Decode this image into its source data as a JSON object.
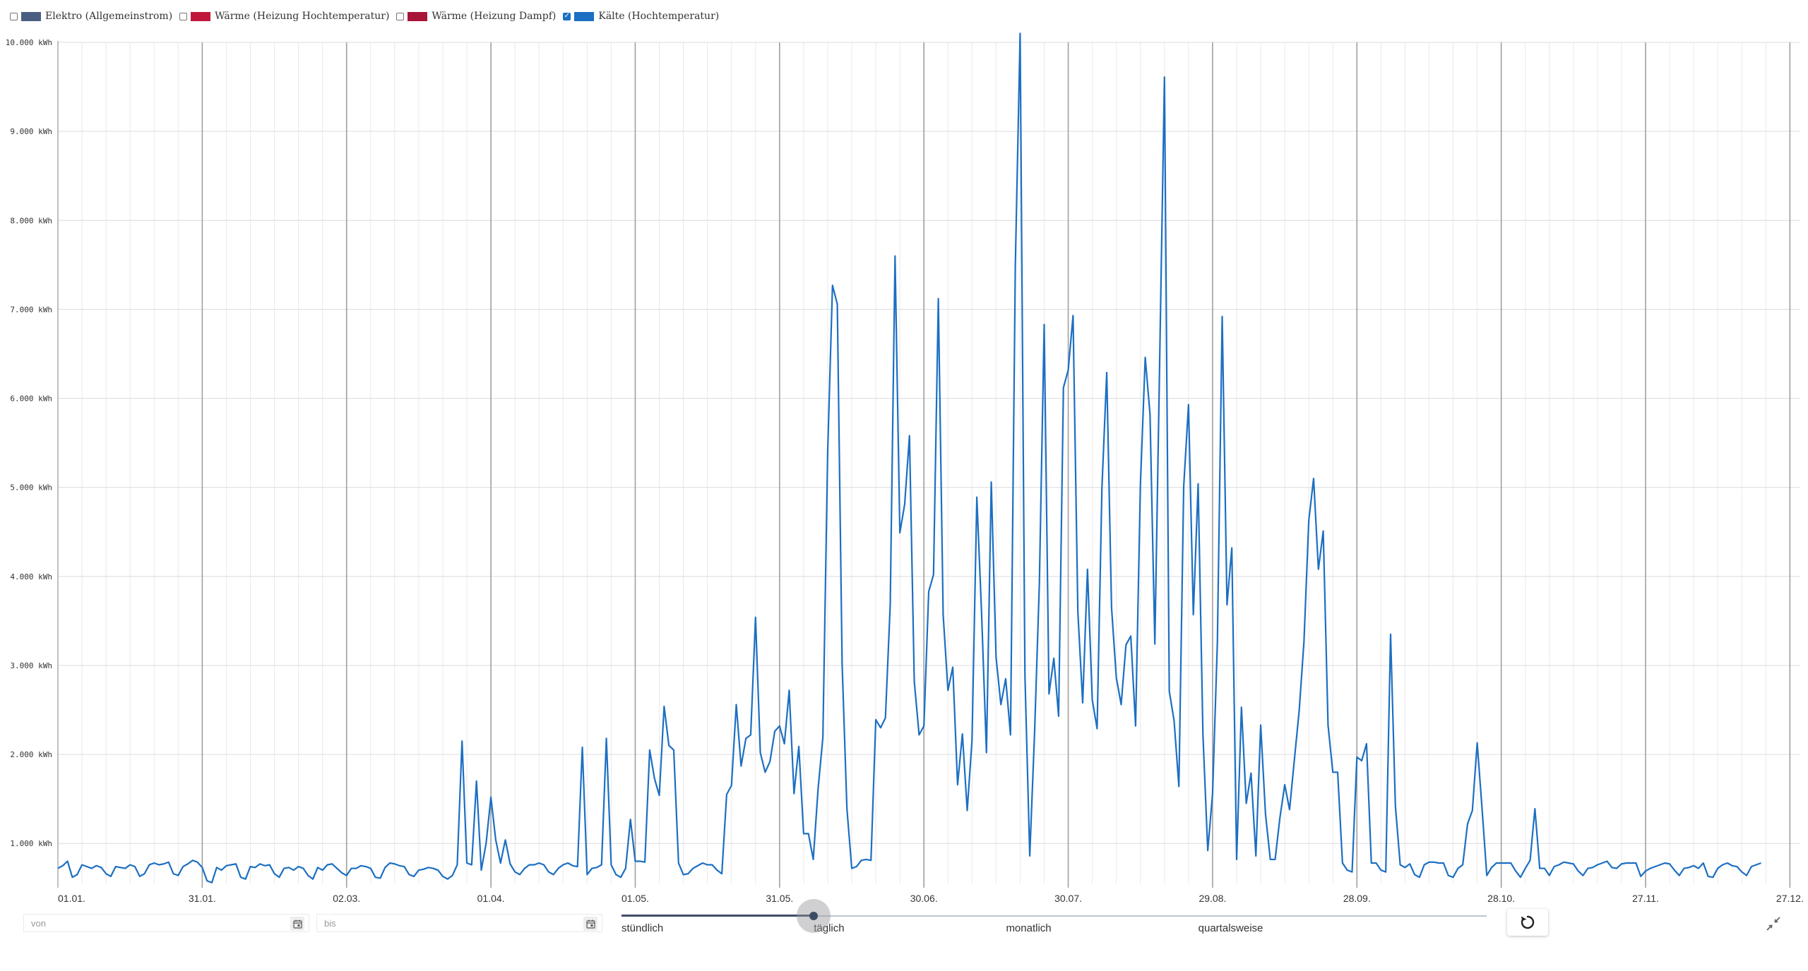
{
  "legend": [
    {
      "label": "Elektro (Allgemeinstrom)",
      "checked": false,
      "color": "#4a5e82"
    },
    {
      "label": "Wärme (Heizung Hochtemperatur)",
      "checked": false,
      "color": "#c0183c"
    },
    {
      "label": "Wärme (Heizung Dampf)",
      "checked": false,
      "color": "#a81538"
    },
    {
      "label": "Kälte (Hochtemperatur)",
      "checked": true,
      "color": "#1c6fc2"
    }
  ],
  "chart_data": {
    "type": "line",
    "title": "",
    "xlabel": "",
    "ylabel": "",
    "x_start": "01.01.",
    "x_tick_labels": [
      "01.01.",
      "31.01.",
      "02.03.",
      "01.04.",
      "01.05.",
      "31.05.",
      "30.06.",
      "30.07.",
      "29.08.",
      "28.09.",
      "28.10.",
      "27.11.",
      "27.12."
    ],
    "x_tick_days": [
      0,
      30,
      60,
      90,
      120,
      150,
      180,
      210,
      240,
      270,
      300,
      330,
      360
    ],
    "y_tick_labels": [
      "1.000 kWh",
      "2.000 kWh",
      "3.000 kWh",
      "4.000 kWh",
      "5.000 kWh",
      "6.000 kWh",
      "7.000 kWh",
      "8.000 kWh",
      "9.000 kWh",
      "10.000 kWh"
    ],
    "y_ticks": [
      1000,
      2000,
      3000,
      4000,
      5000,
      6000,
      7000,
      8000,
      9000,
      10000
    ],
    "ylim": [
      550,
      10000
    ],
    "xlim_days": [
      0,
      362
    ],
    "grid": true,
    "series": [
      {
        "name": "Kälte (Hochtemperatur)",
        "color": "#1c6fc2",
        "values": [
          720,
          750,
          800,
          620,
          650,
          760,
          740,
          720,
          750,
          730,
          660,
          630,
          740,
          730,
          720,
          760,
          740,
          630,
          660,
          760,
          780,
          760,
          770,
          790,
          660,
          640,
          740,
          770,
          810,
          790,
          730,
          580,
          560,
          730,
          700,
          750,
          760,
          770,
          620,
          600,
          740,
          730,
          770,
          750,
          760,
          660,
          620,
          720,
          730,
          700,
          740,
          720,
          640,
          600,
          730,
          700,
          760,
          770,
          720,
          670,
          640,
          720,
          720,
          750,
          740,
          720,
          620,
          610,
          730,
          780,
          770,
          750,
          740,
          650,
          630,
          700,
          710,
          730,
          720,
          700,
          630,
          600,
          640,
          760,
          2150,
          780,
          760,
          1700,
          700,
          1000,
          1520,
          1040,
          780,
          1040,
          770,
          680,
          650,
          720,
          760,
          760,
          780,
          760,
          680,
          650,
          720,
          760,
          780,
          750,
          740,
          2080,
          650,
          720,
          730,
          760,
          2180,
          760,
          650,
          620,
          720,
          1270,
          800,
          800,
          790,
          2050,
          1730,
          1540,
          2540,
          2100,
          2050,
          780,
          650,
          660,
          720,
          750,
          780,
          760,
          760,
          700,
          660,
          1550,
          1650,
          2560,
          1870,
          2180,
          2220,
          3540,
          2020,
          1800,
          1920,
          2260,
          2320,
          2120,
          2720,
          1560,
          2090,
          1110,
          1110,
          820,
          1610,
          2190,
          5400,
          7270,
          7060,
          3020,
          1390,
          720,
          740,
          810,
          820,
          810,
          2390,
          2300,
          2410,
          3680,
          7600,
          4490,
          4810,
          5580,
          2820,
          2220,
          2320,
          3830,
          4020,
          7120,
          3570,
          2720,
          2980,
          1660,
          2230,
          1370,
          2160,
          4890,
          3570,
          2020,
          5060,
          3090,
          2560,
          2850,
          2220,
          7490,
          10100,
          2890,
          860,
          2240,
          3920,
          6830,
          2680,
          3080,
          2430,
          6120,
          6320,
          6930,
          3600,
          2580,
          4080,
          2610,
          2290,
          4990,
          6290,
          3650,
          2860,
          2560,
          3230,
          3330,
          2320,
          5030,
          6460,
          5820,
          3240,
          6400,
          9610,
          2710,
          2380,
          1640,
          5010,
          5930,
          3570,
          5040,
          2220,
          920,
          1560,
          3260,
          6920,
          3680,
          4320,
          820,
          2530,
          1450,
          1790,
          860,
          2330,
          1330,
          820,
          820,
          1290,
          1660,
          1380,
          1940,
          2490,
          3270,
          4630,
          5100,
          4080,
          4510,
          2330,
          1800,
          1800,
          780,
          700,
          680,
          1970,
          1930,
          2120,
          780,
          780,
          700,
          680,
          3350,
          1420,
          760,
          730,
          770,
          650,
          620,
          760,
          790,
          790,
          780,
          780,
          640,
          620,
          720,
          760,
          1220,
          1370,
          2130,
          1400,
          640,
          730,
          780,
          780,
          780,
          780,
          690,
          620,
          720,
          810,
          1390,
          720,
          720,
          640,
          740,
          760,
          790,
          780,
          770,
          690,
          640,
          720,
          730,
          760,
          780,
          800,
          730,
          720,
          770,
          780,
          780,
          780,
          630,
          690,
          720,
          740,
          760,
          780,
          770,
          700,
          640,
          720,
          730,
          750,
          720,
          780,
          630,
          620,
          720,
          760,
          780,
          750,
          740,
          680,
          640,
          740,
          760,
          780
        ]
      }
    ]
  },
  "filters": {
    "from_placeholder": "von",
    "to_placeholder": "bis"
  },
  "resolution": {
    "options": [
      "stündlich",
      "täglich",
      "monatlich",
      "quartalsweise"
    ],
    "selected_index": 1
  },
  "icons": {
    "calendar": "calendar-icon",
    "reset": "reset-icon",
    "collapse": "collapse-icon"
  }
}
